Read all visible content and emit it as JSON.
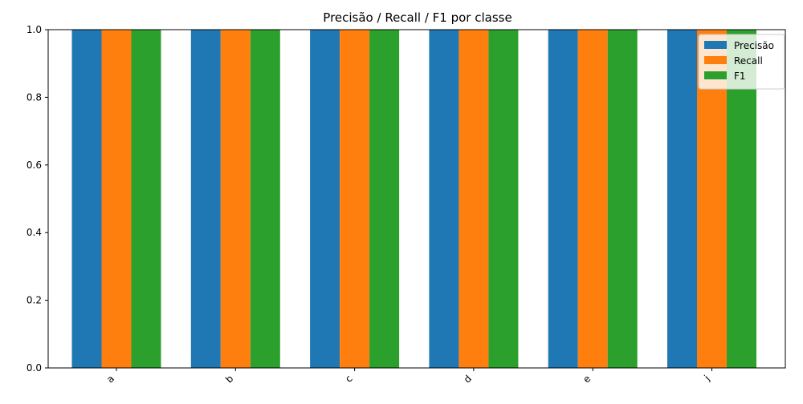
{
  "chart_data": {
    "type": "bar",
    "title": "Precisão / Recall / F1 por classe",
    "xlabel": "",
    "ylabel": "",
    "categories": [
      "a",
      "b",
      "c",
      "d",
      "e",
      "j"
    ],
    "series": [
      {
        "name": "Precisão",
        "values": [
          1.0,
          1.0,
          1.0,
          1.0,
          1.0,
          1.0
        ],
        "color": "#1f77b4"
      },
      {
        "name": "Recall",
        "values": [
          1.0,
          1.0,
          1.0,
          1.0,
          1.0,
          1.0
        ],
        "color": "#ff7f0e"
      },
      {
        "name": "F1",
        "values": [
          1.0,
          1.0,
          1.0,
          1.0,
          1.0,
          1.0
        ],
        "color": "#2ca02c"
      }
    ],
    "ylim": [
      0,
      1.0
    ],
    "yticks": [
      0.0,
      0.2,
      0.4,
      0.6,
      0.8,
      1.0
    ],
    "ytick_labels": [
      "0.0",
      "0.2",
      "0.4",
      "0.6",
      "0.8",
      "1.0"
    ],
    "grid": false,
    "legend_position": "top-right",
    "xtick_rotation": "45deg"
  }
}
